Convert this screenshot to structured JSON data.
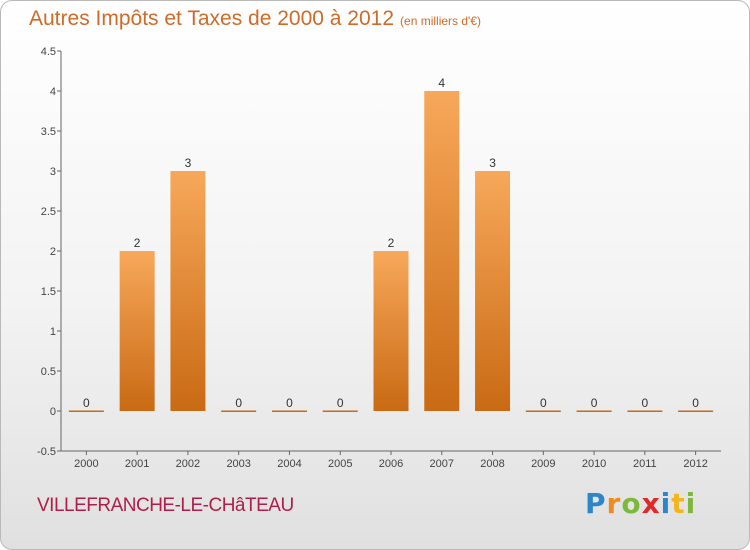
{
  "header": {
    "title": "Autres Impôts et Taxes de 2000 à 2012",
    "subtitle": "(en milliers d'€)"
  },
  "footer": {
    "commune": "VILLEFRANCHE-LE-CHâTEAU",
    "logo": "Proxiti"
  },
  "colors": {
    "bar_top": "#f7a85a",
    "bar_bottom": "#c96a14",
    "title": "#d06a28",
    "commune": "#b01e4a"
  },
  "chart_data": {
    "type": "bar",
    "title": "Autres Impôts et Taxes de 2000 à 2012",
    "subtitle": "(en milliers d'€)",
    "categories": [
      "2000",
      "2001",
      "2002",
      "2003",
      "2004",
      "2005",
      "2006",
      "2007",
      "2008",
      "2009",
      "2010",
      "2011",
      "2012"
    ],
    "values": [
      0,
      2,
      3,
      0,
      0,
      0,
      2,
      4,
      3,
      0,
      0,
      0,
      0
    ],
    "data_labels": [
      "0",
      "2",
      "3",
      "0",
      "0",
      "0",
      "2",
      "4",
      "3",
      "0",
      "0",
      "0",
      "0"
    ],
    "yticks": [
      "-0.5",
      "0",
      "0.5",
      "1",
      "1.5",
      "2",
      "2.5",
      "3",
      "3.5",
      "4",
      "4.5"
    ],
    "ylim": [
      -0.5,
      4.5
    ],
    "grid": false
  }
}
